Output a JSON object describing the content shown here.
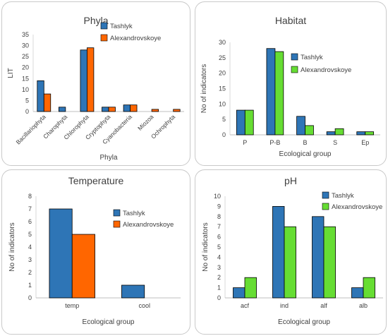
{
  "chart_data": [
    {
      "type": "bar",
      "title": "Phyla",
      "xlabel": "Phyla",
      "ylabel": "LIT",
      "ylim": [
        0,
        35
      ],
      "yticks": [
        0,
        5,
        10,
        15,
        20,
        25,
        30,
        35
      ],
      "grid": false,
      "legend": "right",
      "categories": [
        "Bacillariophyta",
        "Charophyta",
        "Chlorophyta",
        "Cryptophyta",
        "Cyanobacteria",
        "Miozoa",
        "Ochrophyta"
      ],
      "series": [
        {
          "name": "Tashlyk",
          "color": "#2e75b6",
          "values": [
            14,
            2,
            28,
            2,
            3,
            0,
            0
          ]
        },
        {
          "name": "Alexandrovskoye",
          "color": "#ff6600",
          "values": [
            8,
            0,
            29,
            2,
            3,
            1,
            1
          ]
        }
      ]
    },
    {
      "type": "bar",
      "title": "Habitat",
      "xlabel": "Ecological group",
      "ylabel": "No of indicators",
      "ylim": [
        0,
        30
      ],
      "yticks": [
        0,
        5,
        10,
        15,
        20,
        25,
        30
      ],
      "grid": false,
      "legend": "right",
      "categories": [
        "P",
        "P-B",
        "B",
        "S",
        "Ep"
      ],
      "series": [
        {
          "name": "Tashlyk",
          "color": "#2e75b6",
          "values": [
            8,
            28,
            6,
            1,
            1
          ]
        },
        {
          "name": "Alexandrovskoye",
          "color": "#66dd33",
          "values": [
            8,
            27,
            3,
            2,
            1
          ]
        }
      ]
    },
    {
      "type": "bar",
      "title": "Temperature",
      "xlabel": "Ecological group",
      "ylabel": "No of indicators",
      "ylim": [
        0,
        8
      ],
      "yticks": [
        0,
        1,
        2,
        3,
        4,
        5,
        6,
        7,
        8
      ],
      "grid": false,
      "legend": "right",
      "categories": [
        "temp",
        "cool"
      ],
      "series": [
        {
          "name": "Tashlyk",
          "color": "#2e75b6",
          "values": [
            7,
            1
          ]
        },
        {
          "name": "Alexandrovskoye",
          "color": "#ff6600",
          "values": [
            5,
            0
          ]
        }
      ]
    },
    {
      "type": "bar",
      "title": "pH",
      "xlabel": "Ecological group",
      "ylabel": "No of indicators",
      "ylim": [
        0,
        10
      ],
      "yticks": [
        0,
        1,
        2,
        3,
        4,
        5,
        6,
        7,
        8,
        9,
        10
      ],
      "grid": false,
      "legend": "top-right",
      "categories": [
        "acf",
        "ind",
        "alf",
        "alb"
      ],
      "series": [
        {
          "name": "Tashlyk",
          "color": "#2e75b6",
          "values": [
            1,
            9,
            8,
            1
          ]
        },
        {
          "name": "Alexandrovskoye",
          "color": "#66dd33",
          "values": [
            2,
            7,
            7,
            2
          ]
        }
      ]
    }
  ]
}
